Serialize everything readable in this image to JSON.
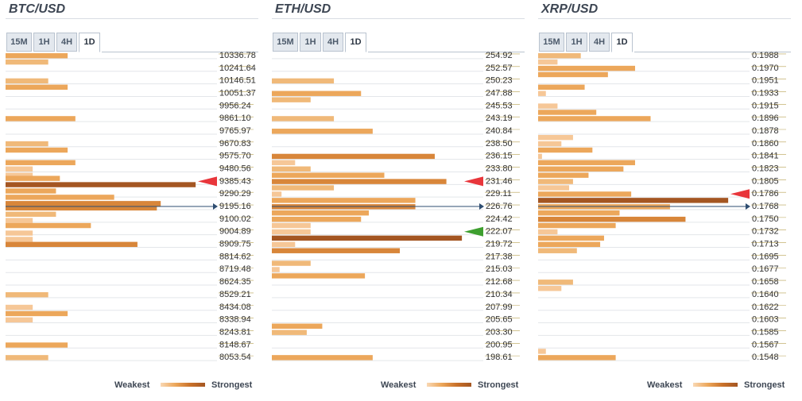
{
  "panels": [
    {
      "title": "BTC/USD",
      "tabs": [
        "15M",
        "1H",
        "4H",
        "1D"
      ],
      "active_tab": "1D",
      "legend": {
        "weakest": "Weakest",
        "strongest": "Strongest"
      },
      "current_price_row": 12,
      "red_arrow_rows": [
        10
      ],
      "green_arrow_rows": []
    },
    {
      "title": "ETH/USD",
      "tabs": [
        "15M",
        "1H",
        "4H",
        "1D"
      ],
      "active_tab": "1D",
      "legend": {
        "weakest": "Weakest",
        "strongest": "Strongest"
      },
      "current_price_row": 12,
      "red_arrow_rows": [
        10
      ],
      "green_arrow_rows": [
        14
      ]
    },
    {
      "title": "XRP/USD",
      "tabs": [
        "15M",
        "1H",
        "4H",
        "1D"
      ],
      "active_tab": "1D",
      "legend": {
        "weakest": "Weakest",
        "strongest": "Strongest"
      },
      "current_price_row": 12,
      "red_arrow_rows": [
        11
      ],
      "green_arrow_rows": []
    }
  ],
  "colors": {
    "weakest": "#f6c797",
    "weak": "#f0b979",
    "medium": "#eca75b",
    "strong": "#d8863a",
    "strongest": "#a45622",
    "price_line": "#2e4d71",
    "red_arrow": "#e8363b",
    "green_arrow": "#3e9f2f",
    "grid": "#e3e6ea"
  },
  "chart_data": [
    {
      "type": "bar",
      "title": "BTC/USD",
      "price_levels": [
        "10336.78",
        "10241.64",
        "10146.51",
        "10051.37",
        "9956.24",
        "9861.10",
        "9765.97",
        "9670.83",
        "9575.70",
        "9480.56",
        "9385.43",
        "9290.29",
        "9195.16",
        "9100.02",
        "9004.89",
        "8909.75",
        "8814.62",
        "8719.48",
        "8624.35",
        "8529.21",
        "8434.08",
        "8338.94",
        "8243.81",
        "8148.67",
        "8053.54"
      ],
      "rows_per_level": 2,
      "bars": [
        {
          "slot": 0,
          "value": 0.32,
          "strength": 3
        },
        {
          "slot": 1,
          "value": 0.22,
          "strength": 1
        },
        {
          "slot": 4,
          "value": 0.22,
          "strength": 1
        },
        {
          "slot": 5,
          "value": 0.32,
          "strength": 3
        },
        {
          "slot": 10,
          "value": 0.36,
          "strength": 3
        },
        {
          "slot": 14,
          "value": 0.22,
          "strength": 1
        },
        {
          "slot": 15,
          "value": 0.32,
          "strength": 3
        },
        {
          "slot": 17,
          "value": 0.36,
          "strength": 3
        },
        {
          "slot": 18,
          "value": 0.14,
          "strength": 0
        },
        {
          "slot": 19,
          "value": 0.14,
          "strength": 0
        },
        {
          "slot": 19.5,
          "value": 0.28,
          "strength": 2
        },
        {
          "slot": 20.5,
          "value": 0.98,
          "strength": 5
        },
        {
          "slot": 21.5,
          "value": 0.26,
          "strength": 2
        },
        {
          "slot": 22.5,
          "value": 0.56,
          "strength": 3
        },
        {
          "slot": 23.5,
          "value": 0.8,
          "strength": 4
        },
        {
          "slot": 24.2,
          "value": 0.78,
          "strength": 4
        },
        {
          "slot": 25.2,
          "value": 0.26,
          "strength": 1
        },
        {
          "slot": 26.2,
          "value": 0.14,
          "strength": 0
        },
        {
          "slot": 27,
          "value": 0.44,
          "strength": 3
        },
        {
          "slot": 28.2,
          "value": 0.14,
          "strength": 0
        },
        {
          "slot": 29.2,
          "value": 0.14,
          "strength": 0
        },
        {
          "slot": 30,
          "value": 0.68,
          "strength": 4
        },
        {
          "slot": 38,
          "value": 0.22,
          "strength": 1
        },
        {
          "slot": 40,
          "value": 0.14,
          "strength": 0
        },
        {
          "slot": 41,
          "value": 0.32,
          "strength": 2
        },
        {
          "slot": 42,
          "value": 0.14,
          "strength": 0
        },
        {
          "slot": 46,
          "value": 0.32,
          "strength": 3
        },
        {
          "slot": 48,
          "value": 0.22,
          "strength": 1
        }
      ]
    },
    {
      "type": "bar",
      "title": "ETH/USD",
      "price_levels": [
        "254.92",
        "252.57",
        "250.23",
        "247.88",
        "245.53",
        "243.19",
        "240.84",
        "238.50",
        "236.15",
        "233.80",
        "231.46",
        "229.11",
        "226.76",
        "224.42",
        "222.07",
        "219.72",
        "217.38",
        "215.03",
        "212.68",
        "210.34",
        "207.99",
        "205.65",
        "203.30",
        "200.95",
        "198.61"
      ],
      "rows_per_level": 2,
      "bars": [
        {
          "slot": 4,
          "value": 0.32,
          "strength": 1
        },
        {
          "slot": 6,
          "value": 0.46,
          "strength": 3
        },
        {
          "slot": 7,
          "value": 0.2,
          "strength": 1
        },
        {
          "slot": 10,
          "value": 0.32,
          "strength": 1
        },
        {
          "slot": 12,
          "value": 0.52,
          "strength": 3
        },
        {
          "slot": 16,
          "value": 0.84,
          "strength": 4
        },
        {
          "slot": 17,
          "value": 0.12,
          "strength": 0
        },
        {
          "slot": 18,
          "value": 0.2,
          "strength": 1
        },
        {
          "slot": 19,
          "value": 0.58,
          "strength": 3
        },
        {
          "slot": 20,
          "value": 0.9,
          "strength": 4
        },
        {
          "slot": 21,
          "value": 0.32,
          "strength": 1
        },
        {
          "slot": 22,
          "value": 0.05,
          "strength": 0
        },
        {
          "slot": 23,
          "value": 0.74,
          "strength": 3
        },
        {
          "slot": 24,
          "value": 0.74,
          "strength": 4
        },
        {
          "slot": 25,
          "value": 0.5,
          "strength": 3
        },
        {
          "slot": 26,
          "value": 0.46,
          "strength": 3
        },
        {
          "slot": 27,
          "value": 0.2,
          "strength": 0
        },
        {
          "slot": 28,
          "value": 0.2,
          "strength": 0
        },
        {
          "slot": 29,
          "value": 0.98,
          "strength": 5
        },
        {
          "slot": 30,
          "value": 0.12,
          "strength": 0
        },
        {
          "slot": 31,
          "value": 0.66,
          "strength": 4
        },
        {
          "slot": 33,
          "value": 0.2,
          "strength": 1
        },
        {
          "slot": 34,
          "value": 0.04,
          "strength": 0
        },
        {
          "slot": 35,
          "value": 0.48,
          "strength": 3
        },
        {
          "slot": 43,
          "value": 0.26,
          "strength": 2
        },
        {
          "slot": 44,
          "value": 0.18,
          "strength": 1
        },
        {
          "slot": 48,
          "value": 0.52,
          "strength": 3
        }
      ]
    },
    {
      "type": "bar",
      "title": "XRP/USD",
      "price_levels": [
        "0.1988",
        "0.1970",
        "0.1951",
        "0.1933",
        "0.1915",
        "0.1896",
        "0.1878",
        "0.1860",
        "0.1841",
        "0.1823",
        "0.1805",
        "0.1786",
        "0.1768",
        "0.1750",
        "0.1732",
        "0.1713",
        "0.1695",
        "0.1677",
        "0.1658",
        "0.1640",
        "0.1622",
        "0.1603",
        "0.1585",
        "0.1567",
        "0.1548"
      ],
      "rows_per_level": 2,
      "bars": [
        {
          "slot": 0,
          "value": 0.22,
          "strength": 1
        },
        {
          "slot": 1,
          "value": 0.1,
          "strength": 0
        },
        {
          "slot": 2,
          "value": 0.5,
          "strength": 3
        },
        {
          "slot": 3,
          "value": 0.36,
          "strength": 2
        },
        {
          "slot": 5,
          "value": 0.24,
          "strength": 2
        },
        {
          "slot": 6,
          "value": 0.04,
          "strength": 0
        },
        {
          "slot": 8,
          "value": 0.1,
          "strength": 0
        },
        {
          "slot": 9,
          "value": 0.3,
          "strength": 2
        },
        {
          "slot": 10,
          "value": 0.58,
          "strength": 3
        },
        {
          "slot": 13,
          "value": 0.18,
          "strength": 0
        },
        {
          "slot": 14,
          "value": 0.12,
          "strength": 0
        },
        {
          "slot": 15,
          "value": 0.28,
          "strength": 2
        },
        {
          "slot": 16,
          "value": 0.02,
          "strength": 0
        },
        {
          "slot": 17,
          "value": 0.5,
          "strength": 3
        },
        {
          "slot": 18,
          "value": 0.44,
          "strength": 3
        },
        {
          "slot": 19,
          "value": 0.26,
          "strength": 2
        },
        {
          "slot": 20,
          "value": 0.18,
          "strength": 1
        },
        {
          "slot": 21,
          "value": 0.16,
          "strength": 0
        },
        {
          "slot": 22,
          "value": 0.48,
          "strength": 3
        },
        {
          "slot": 23,
          "value": 0.98,
          "strength": 5
        },
        {
          "slot": 24,
          "value": 0.68,
          "strength": 3
        },
        {
          "slot": 25,
          "value": 0.42,
          "strength": 2
        },
        {
          "slot": 26,
          "value": 0.76,
          "strength": 4
        },
        {
          "slot": 27,
          "value": 0.4,
          "strength": 3
        },
        {
          "slot": 28,
          "value": 0.1,
          "strength": 0
        },
        {
          "slot": 29,
          "value": 0.34,
          "strength": 2
        },
        {
          "slot": 30,
          "value": 0.32,
          "strength": 2
        },
        {
          "slot": 31,
          "value": 0.2,
          "strength": 1
        },
        {
          "slot": 36,
          "value": 0.18,
          "strength": 1
        },
        {
          "slot": 37,
          "value": 0.12,
          "strength": 0
        },
        {
          "slot": 47,
          "value": 0.04,
          "strength": 0
        },
        {
          "slot": 48,
          "value": 0.4,
          "strength": 3
        }
      ]
    }
  ]
}
